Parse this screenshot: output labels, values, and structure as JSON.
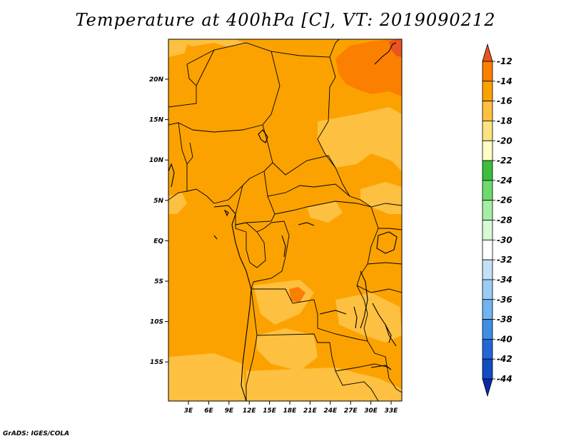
{
  "title": "Temperature at 400hPa [C], VT: 2019090212",
  "credit": "GrADS: IGES/COLA",
  "map": {
    "lon_ticks": [
      "3E",
      "6E",
      "9E",
      "12E",
      "15E",
      "18E",
      "21E",
      "24E",
      "27E",
      "30E",
      "33E"
    ],
    "lat_ticks": [
      "20N",
      "15N",
      "10N",
      "5N",
      "EQ",
      "5S",
      "10S",
      "15S"
    ]
  },
  "colorbar": {
    "labels": [
      "-12",
      "-14",
      "-16",
      "-18",
      "-20",
      "-22",
      "-24",
      "-26",
      "-28",
      "-30",
      "-32",
      "-34",
      "-36",
      "-38",
      "-40",
      "-42",
      "-44"
    ],
    "colors": [
      "#e9541f",
      "#fb7f00",
      "#fba200",
      "#fdc040",
      "#fee27f",
      "#fefdc5",
      "#3cbf3c",
      "#6cdb6c",
      "#a5eea5",
      "#d6f9d6",
      "#ffffff",
      "#c4e0f6",
      "#9bcdf3",
      "#72b4ee",
      "#3e8ee3",
      "#2366d8",
      "#124cc3",
      "#0a2aa3"
    ]
  },
  "palette": {
    "base": "#fba200",
    "light": "#fdc040",
    "dark": "#fb7f00",
    "hot": "#e9541f"
  }
}
